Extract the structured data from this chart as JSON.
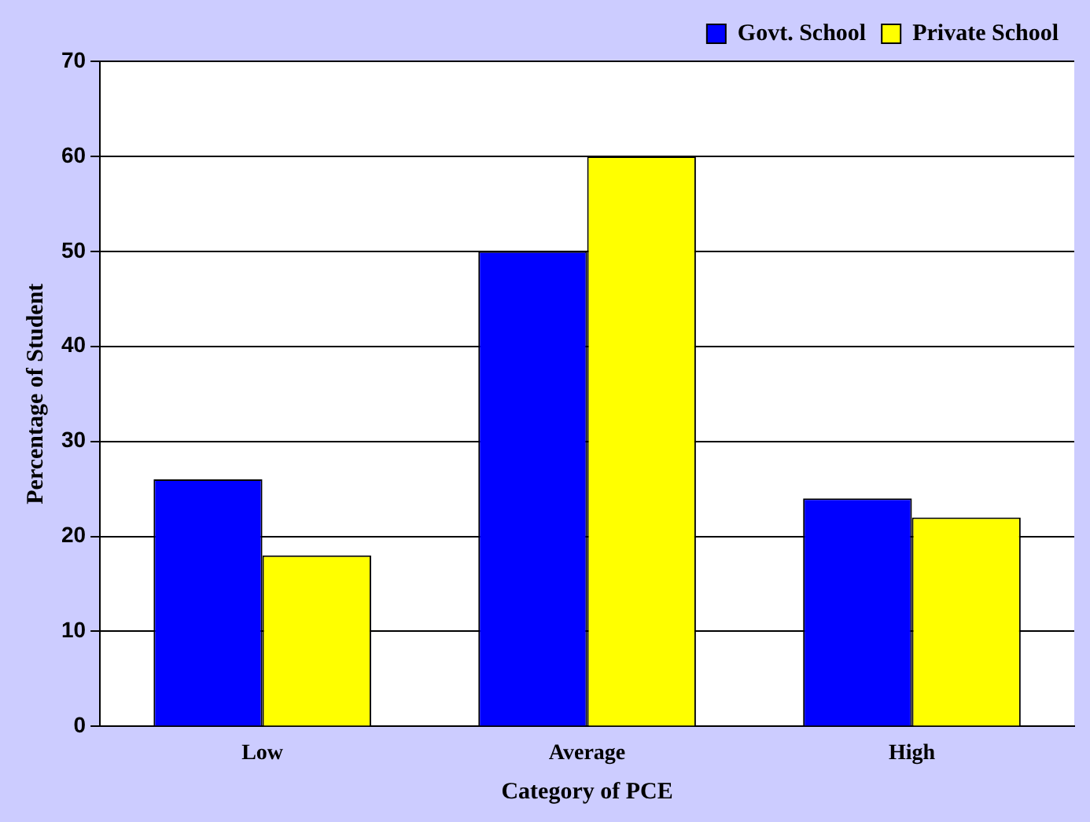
{
  "chart_data": {
    "type": "bar",
    "xlabel": "Category of PCE",
    "ylabel": "Percentage of Student",
    "categories": [
      "Low",
      "Average",
      "High"
    ],
    "series": [
      {
        "name": "Govt. School",
        "color": "#0000ff",
        "values": [
          26,
          50,
          24
        ]
      },
      {
        "name": "Private School",
        "color": "#ffff00",
        "values": [
          18,
          60,
          22
        ]
      }
    ],
    "ylim": [
      0,
      70
    ],
    "yticks": [
      0,
      10,
      20,
      30,
      40,
      50,
      60,
      70
    ],
    "grid": "y",
    "legend": "top right"
  }
}
